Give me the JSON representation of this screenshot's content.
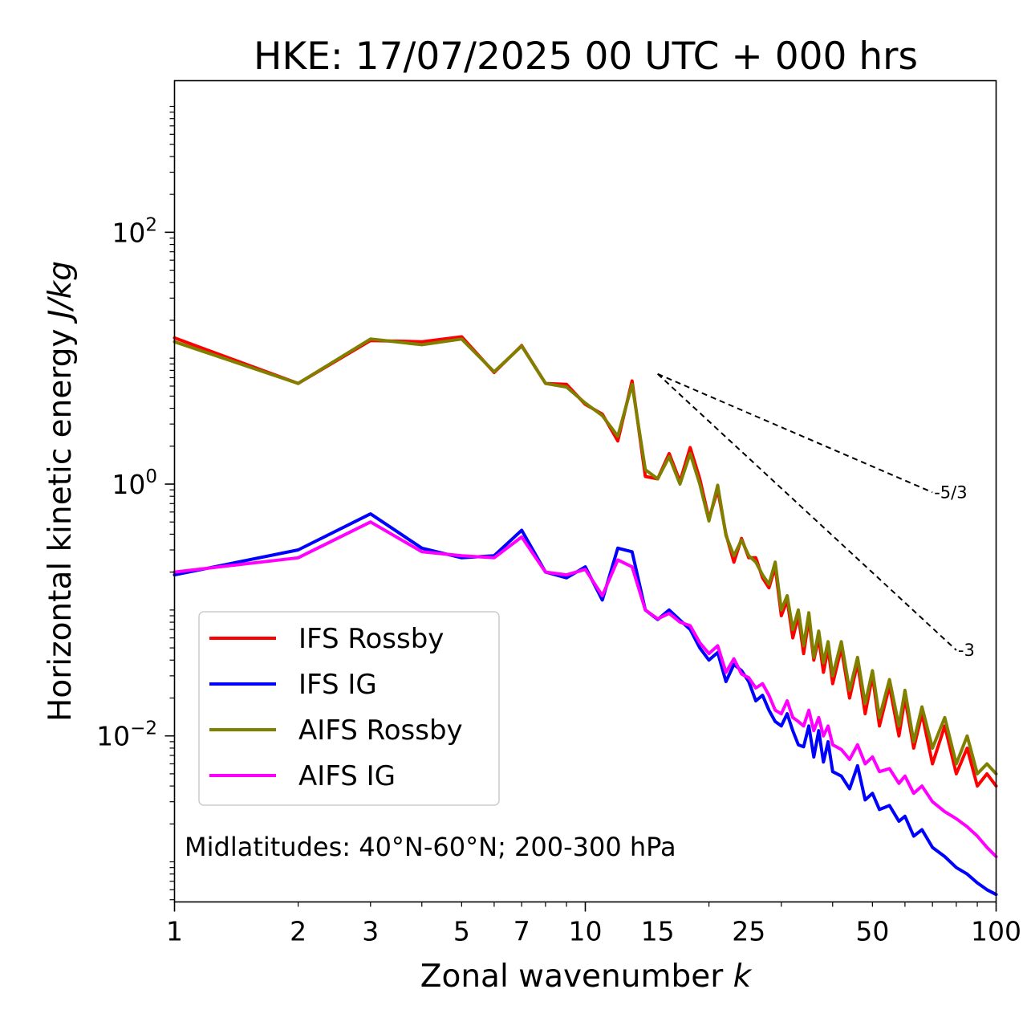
{
  "chart_data": {
    "type": "line",
    "title": "HKE: 17/07/2025 00 UTC + 000 hrs",
    "xlabel": {
      "text": "Zonal wavenumber ",
      "italic": "k"
    },
    "ylabel": {
      "text": "Horizontal kinetic energy ",
      "italic": "J/kg"
    },
    "xscale": "log",
    "yscale": "log",
    "xlim": [
      1,
      100
    ],
    "ylim": [
      0.00048,
      1600
    ],
    "x_ticks": [
      1,
      2,
      3,
      5,
      7,
      10,
      15,
      25,
      50,
      100
    ],
    "x_tick_labels": [
      "1",
      "2",
      "3",
      "5",
      "7",
      "10",
      "15",
      "25",
      "50",
      "100"
    ],
    "y_ticks": [
      {
        "value": 100,
        "base": "10",
        "exp": "2"
      },
      {
        "value": 1,
        "base": "10",
        "exp": "0"
      },
      {
        "value": 0.01,
        "base": "10",
        "exp": "−2"
      }
    ],
    "grid": false,
    "legend_position": "lower-left",
    "annotation": "Midlatitudes: 40°N-60°N; 200-300 hPa",
    "series": [
      {
        "name": "IFS Rossby",
        "color": "#ff0000",
        "x": [
          1,
          2,
          3,
          4,
          5,
          6,
          7,
          8,
          9,
          10,
          11,
          12,
          13,
          14,
          15,
          16,
          17,
          18,
          19,
          20,
          21,
          22,
          23,
          24,
          25,
          26,
          27,
          28,
          29,
          30,
          31,
          32,
          33,
          34,
          35,
          36,
          37,
          38,
          39,
          40,
          42,
          44,
          46,
          48,
          50,
          52,
          55,
          58,
          60,
          63,
          66,
          70,
          75,
          80,
          85,
          90,
          95,
          100
        ],
        "y": [
          14.5,
          6.3,
          13.8,
          13.5,
          14.8,
          7.7,
          12.6,
          6.3,
          6.2,
          4.3,
          3.6,
          2.2,
          6.6,
          1.15,
          1.1,
          1.75,
          1.05,
          1.95,
          1.1,
          0.53,
          0.9,
          0.4,
          0.24,
          0.37,
          0.26,
          0.26,
          0.18,
          0.15,
          0.22,
          0.09,
          0.12,
          0.06,
          0.09,
          0.045,
          0.085,
          0.04,
          0.06,
          0.032,
          0.05,
          0.026,
          0.05,
          0.02,
          0.038,
          0.015,
          0.03,
          0.012,
          0.025,
          0.01,
          0.02,
          0.008,
          0.015,
          0.006,
          0.012,
          0.005,
          0.008,
          0.004,
          0.005,
          0.004
        ]
      },
      {
        "name": "IFS IG",
        "color": "#0000ff",
        "x": [
          1,
          2,
          3,
          4,
          5,
          6,
          7,
          8,
          9,
          10,
          11,
          12,
          13,
          14,
          15,
          16,
          17,
          18,
          19,
          20,
          21,
          22,
          23,
          24,
          25,
          26,
          27,
          28,
          29,
          30,
          31,
          32,
          33,
          34,
          35,
          36,
          37,
          38,
          39,
          40,
          42,
          44,
          46,
          48,
          50,
          52,
          55,
          58,
          60,
          63,
          66,
          70,
          75,
          80,
          85,
          90,
          95,
          100
        ],
        "y": [
          0.19,
          0.3,
          0.58,
          0.31,
          0.26,
          0.27,
          0.43,
          0.2,
          0.18,
          0.22,
          0.12,
          0.31,
          0.29,
          0.1,
          0.084,
          0.1,
          0.083,
          0.07,
          0.05,
          0.04,
          0.046,
          0.027,
          0.037,
          0.033,
          0.027,
          0.019,
          0.021,
          0.016,
          0.013,
          0.012,
          0.015,
          0.011,
          0.0085,
          0.0082,
          0.012,
          0.0068,
          0.011,
          0.0062,
          0.009,
          0.0052,
          0.0048,
          0.0038,
          0.0058,
          0.0031,
          0.0035,
          0.0026,
          0.0028,
          0.0021,
          0.0023,
          0.0016,
          0.0018,
          0.0013,
          0.0011,
          0.0009,
          0.0008,
          0.00068,
          0.0006,
          0.00055
        ]
      },
      {
        "name": "AIFS Rossby",
        "color": "#808000",
        "x": [
          1,
          2,
          3,
          4,
          5,
          6,
          7,
          8,
          9,
          10,
          11,
          12,
          13,
          14,
          15,
          16,
          17,
          18,
          19,
          20,
          21,
          22,
          23,
          24,
          25,
          26,
          27,
          28,
          29,
          30,
          31,
          32,
          33,
          34,
          35,
          36,
          37,
          38,
          39,
          40,
          42,
          44,
          46,
          48,
          50,
          52,
          55,
          58,
          60,
          63,
          66,
          70,
          75,
          80,
          85,
          90,
          95,
          100
        ],
        "y": [
          13.5,
          6.3,
          14.2,
          12.8,
          14.2,
          7.8,
          12.5,
          6.3,
          5.9,
          4.4,
          3.5,
          2.4,
          6.2,
          1.3,
          1.1,
          1.65,
          1.0,
          1.75,
          1.0,
          0.51,
          0.98,
          0.39,
          0.27,
          0.36,
          0.27,
          0.24,
          0.19,
          0.16,
          0.24,
          0.1,
          0.13,
          0.07,
          0.1,
          0.052,
          0.095,
          0.042,
          0.068,
          0.038,
          0.056,
          0.03,
          0.056,
          0.023,
          0.042,
          0.018,
          0.033,
          0.014,
          0.028,
          0.012,
          0.023,
          0.009,
          0.017,
          0.008,
          0.014,
          0.006,
          0.01,
          0.005,
          0.006,
          0.005
        ]
      },
      {
        "name": "AIFS IG",
        "color": "#ff00ff",
        "x": [
          1,
          2,
          3,
          4,
          5,
          6,
          7,
          8,
          9,
          10,
          11,
          12,
          13,
          14,
          15,
          16,
          17,
          18,
          19,
          20,
          21,
          22,
          23,
          24,
          25,
          26,
          27,
          28,
          29,
          30,
          31,
          32,
          33,
          34,
          35,
          36,
          37,
          38,
          39,
          40,
          42,
          44,
          46,
          48,
          50,
          52,
          55,
          58,
          60,
          63,
          66,
          70,
          75,
          80,
          85,
          90,
          95,
          100
        ],
        "y": [
          0.2,
          0.26,
          0.5,
          0.29,
          0.27,
          0.26,
          0.38,
          0.2,
          0.19,
          0.21,
          0.13,
          0.25,
          0.22,
          0.1,
          0.085,
          0.094,
          0.08,
          0.075,
          0.055,
          0.045,
          0.052,
          0.032,
          0.041,
          0.031,
          0.029,
          0.024,
          0.026,
          0.021,
          0.016,
          0.015,
          0.019,
          0.014,
          0.013,
          0.012,
          0.016,
          0.011,
          0.014,
          0.01,
          0.012,
          0.0085,
          0.0078,
          0.0065,
          0.0085,
          0.006,
          0.0068,
          0.0052,
          0.0055,
          0.0042,
          0.0048,
          0.0035,
          0.004,
          0.003,
          0.0025,
          0.0022,
          0.0019,
          0.0016,
          0.0013,
          0.0011
        ]
      }
    ],
    "reference_slopes": [
      {
        "label": "-5/3",
        "x": [
          15,
          70
        ],
        "y": [
          7.5,
          0.86
        ]
      },
      {
        "label": "-3",
        "x": [
          15,
          80
        ],
        "y": [
          7.5,
          0.048
        ]
      }
    ]
  }
}
